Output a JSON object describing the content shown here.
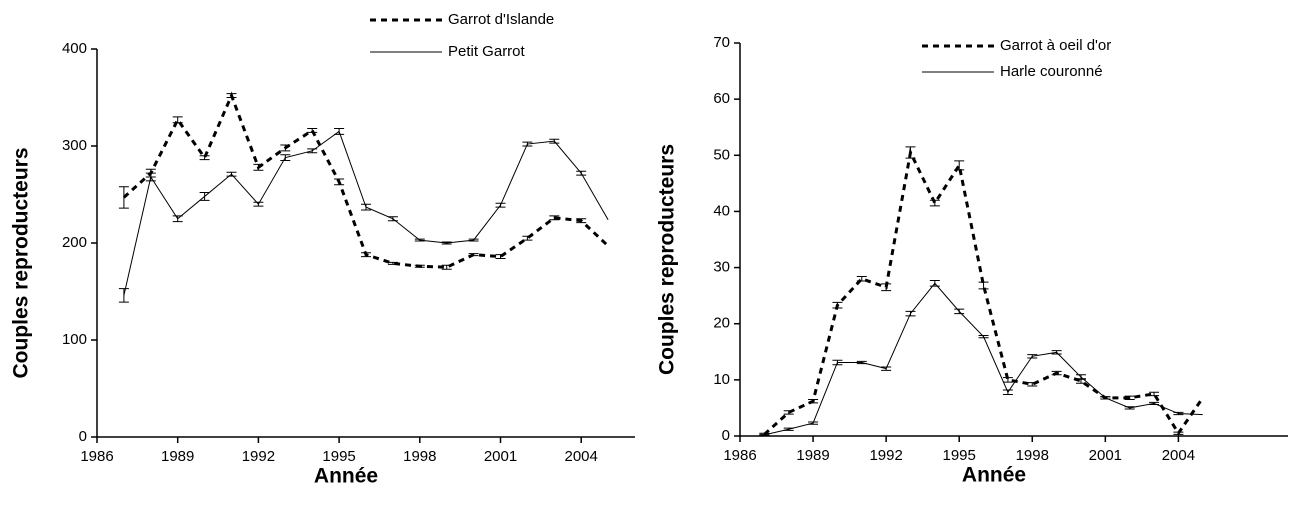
{
  "chart_data": [
    {
      "type": "line",
      "x_label": "Année",
      "y_label": "Couples reproducteurs",
      "x": [
        1987,
        1988,
        1989,
        1990,
        1991,
        1992,
        1993,
        1994,
        1995,
        1996,
        1997,
        1998,
        1999,
        2000,
        2001,
        2002,
        2003,
        2004,
        2005
      ],
      "series": [
        {
          "name": "Garrot d'Islande",
          "color": "#000000",
          "style": "dashed",
          "values": [
            247,
            272,
            327,
            288,
            352,
            278,
            298,
            316,
            263,
            188,
            179,
            176,
            175,
            188,
            186,
            205,
            226,
            223,
            197
          ],
          "errors": [
            11,
            4,
            3,
            2,
            2,
            3,
            3,
            2,
            3,
            2,
            1,
            1,
            2,
            1,
            2,
            2,
            2,
            2,
            null
          ]
        },
        {
          "name": "Petit Garrot",
          "color": "#000000",
          "style": "solid",
          "values": [
            146,
            268,
            225,
            248,
            271,
            240,
            288,
            295,
            315,
            237,
            225,
            203,
            200,
            203,
            239,
            302,
            305,
            272,
            224
          ],
          "errors": [
            7,
            4,
            3,
            4,
            2,
            2,
            3,
            2,
            3,
            3,
            2,
            1,
            1,
            1,
            2,
            2,
            2,
            2,
            null
          ]
        }
      ],
      "xlim": [
        1986,
        2006
      ],
      "xticks": [
        1986,
        1989,
        1992,
        1995,
        1998,
        2001,
        2004
      ],
      "ylim": [
        0,
        400
      ],
      "yticks": [
        0,
        100,
        200,
        300,
        400
      ],
      "legend": "top"
    },
    {
      "type": "line",
      "x_label": "Année",
      "y_label": "Couples reproducteurs",
      "x": [
        1987,
        1988,
        1989,
        1990,
        1991,
        1992,
        1993,
        1994,
        1995,
        1996,
        1997,
        1998,
        1999,
        2000,
        2001,
        2002,
        2003,
        2004,
        2005
      ],
      "series": [
        {
          "name": "Garrot à oeil d'or",
          "color": "#000000",
          "style": "dashed",
          "values": [
            0.3,
            4.2,
            6.2,
            23.3,
            28,
            26.5,
            50.5,
            41.5,
            48.2,
            26.8,
            10,
            9.2,
            11.2,
            9.8,
            6.8,
            6.8,
            7.5,
            0.5,
            6.8
          ],
          "errors": [
            0.2,
            0.3,
            0.3,
            0.5,
            0.4,
            0.6,
            1,
            0.5,
            0.8,
            0.6,
            0.4,
            0.3,
            0.3,
            0.4,
            0.2,
            0.3,
            0.3,
            0.2,
            null
          ]
        },
        {
          "name": "Harle couronné",
          "color": "#000000",
          "style": "solid",
          "values": [
            0.2,
            1.2,
            2.3,
            13.1,
            13.1,
            12,
            21.8,
            27.2,
            22.2,
            17.7,
            7.8,
            14.2,
            14.9,
            10.5,
            6.8,
            5,
            5.8,
            4,
            3.8
          ],
          "errors": [
            0.1,
            0.2,
            0.2,
            0.4,
            0.2,
            0.3,
            0.4,
            0.5,
            0.4,
            0.2,
            0.4,
            0.3,
            0.3,
            0.4,
            0.2,
            0.2,
            0.2,
            0.2,
            null
          ]
        }
      ],
      "xlim": [
        1986,
        2008.5
      ],
      "xticks": [
        1986,
        1989,
        1992,
        1995,
        1998,
        2001,
        2004
      ],
      "ylim": [
        0,
        70
      ],
      "yticks": [
        0,
        10,
        20,
        30,
        40,
        50,
        60,
        70
      ],
      "legend": "top"
    }
  ]
}
